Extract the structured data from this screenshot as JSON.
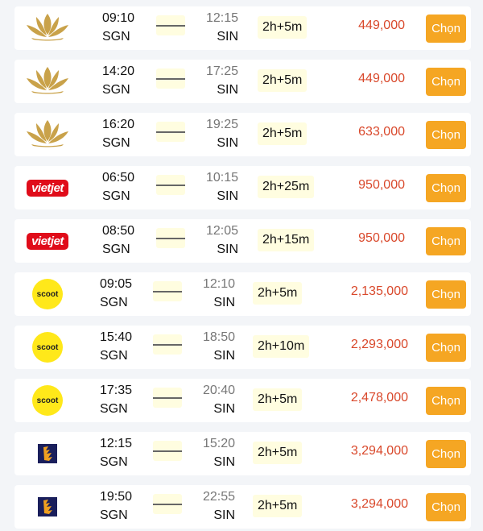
{
  "button_label": "Chọn",
  "colors": {
    "price": "#d9482b",
    "button": "#f5a623",
    "duration_bg": "#fffde0"
  },
  "flights": [
    {
      "airline": "vietnam-airlines",
      "dep_time": "09:10",
      "dep_code": "SGN",
      "arr_time": "12:15",
      "arr_code": "SIN",
      "duration": "2h+5m",
      "price": "449,000"
    },
    {
      "airline": "vietnam-airlines",
      "dep_time": "14:20",
      "dep_code": "SGN",
      "arr_time": "17:25",
      "arr_code": "SIN",
      "duration": "2h+5m",
      "price": "449,000"
    },
    {
      "airline": "vietnam-airlines",
      "dep_time": "16:20",
      "dep_code": "SGN",
      "arr_time": "19:25",
      "arr_code": "SIN",
      "duration": "2h+5m",
      "price": "633,000"
    },
    {
      "airline": "vietjet",
      "logo_text": "vietjet",
      "dep_time": "06:50",
      "dep_code": "SGN",
      "arr_time": "10:15",
      "arr_code": "SIN",
      "duration": "2h+25m",
      "price": "950,000"
    },
    {
      "airline": "vietjet",
      "logo_text": "vietjet",
      "dep_time": "08:50",
      "dep_code": "SGN",
      "arr_time": "12:05",
      "arr_code": "SIN",
      "duration": "2h+15m",
      "price": "950,000"
    },
    {
      "airline": "scoot",
      "logo_text": "scoot",
      "dep_time": "09:05",
      "dep_code": "SGN",
      "arr_time": "12:10",
      "arr_code": "SIN",
      "duration": "2h+5m",
      "price": "2,135,000"
    },
    {
      "airline": "scoot",
      "logo_text": "scoot",
      "dep_time": "15:40",
      "dep_code": "SGN",
      "arr_time": "18:50",
      "arr_code": "SIN",
      "duration": "2h+10m",
      "price": "2,293,000"
    },
    {
      "airline": "scoot",
      "logo_text": "scoot",
      "dep_time": "17:35",
      "dep_code": "SGN",
      "arr_time": "20:40",
      "arr_code": "SIN",
      "duration": "2h+5m",
      "price": "2,478,000"
    },
    {
      "airline": "singapore-airlines",
      "dep_time": "12:15",
      "dep_code": "SGN",
      "arr_time": "15:20",
      "arr_code": "SIN",
      "duration": "2h+5m",
      "price": "3,294,000"
    },
    {
      "airline": "singapore-airlines",
      "dep_time": "19:50",
      "dep_code": "SGN",
      "arr_time": "22:55",
      "arr_code": "SIN",
      "duration": "2h+5m",
      "price": "3,294,000"
    }
  ]
}
